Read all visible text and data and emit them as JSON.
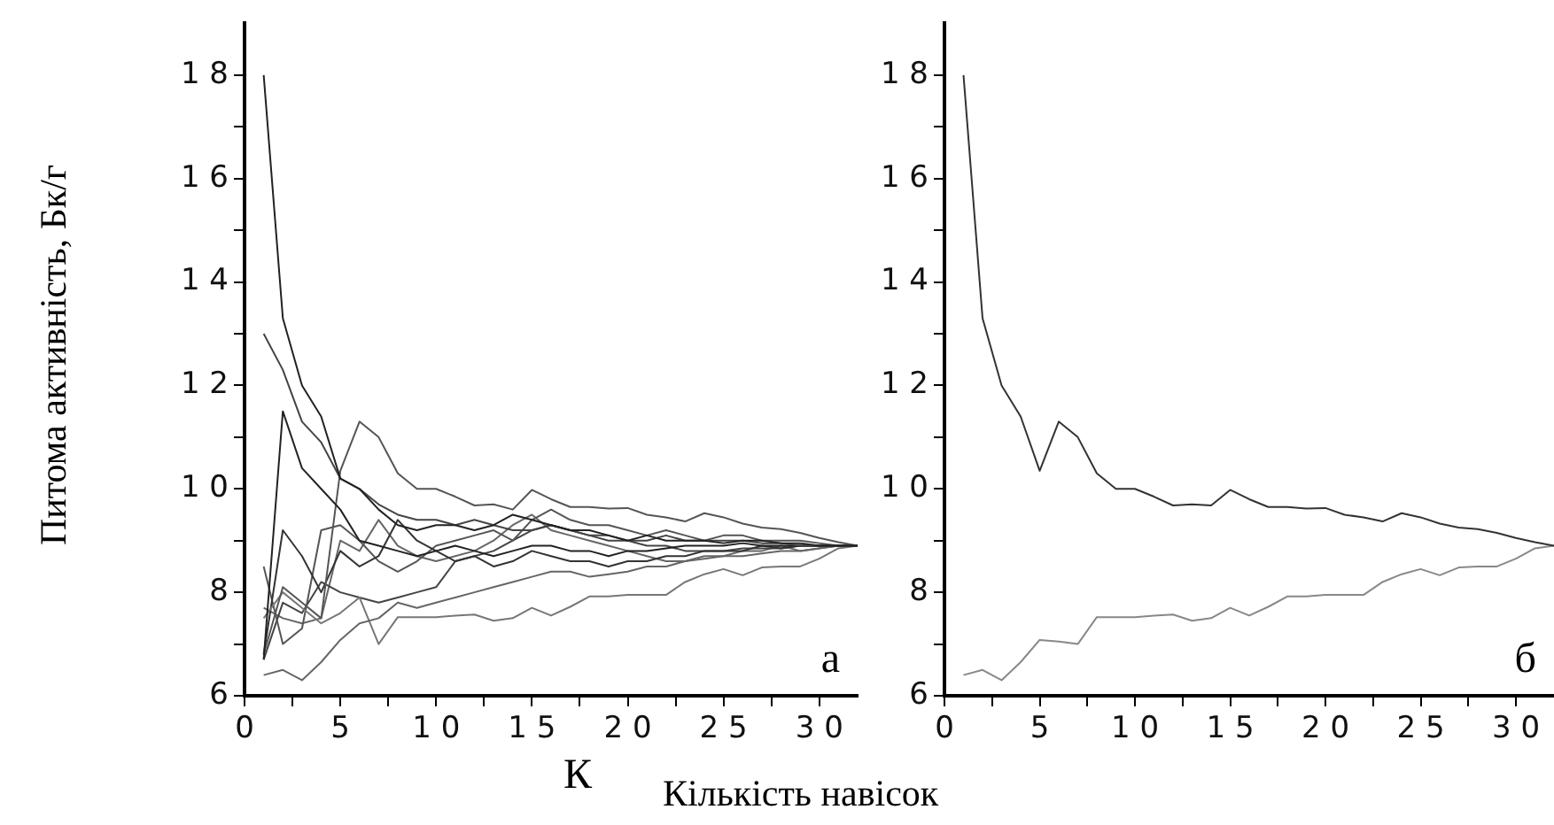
{
  "chart_data": [
    {
      "type": "line",
      "ylabel": "Питома активність, Бк/г",
      "xlabel": "К",
      "annotations": [
        "а"
      ],
      "grid": false,
      "legend": false,
      "marker": "none",
      "line_style": "solid",
      "x": [
        1,
        2,
        3,
        4,
        5,
        6,
        7,
        8,
        9,
        10,
        11,
        12,
        13,
        14,
        15,
        16,
        17,
        18,
        19,
        20,
        21,
        22,
        23,
        24,
        25,
        26,
        27,
        28,
        29,
        30,
        31,
        32
      ],
      "xlim": [
        0,
        32
      ],
      "ylim": [
        6,
        19
      ],
      "xticks": [
        0,
        {
          "value": 2.5,
          "label": null
        },
        5,
        {
          "value": 7.5,
          "label": null
        },
        10,
        {
          "value": 12.5,
          "label": null
        },
        15,
        {
          "value": 17.5,
          "label": null
        },
        20,
        {
          "value": 22.5,
          "label": null
        },
        25,
        {
          "value": 27.5,
          "label": null
        },
        30
      ],
      "yticks": [
        6,
        {
          "value": 7,
          "label": null
        },
        8,
        {
          "value": 9,
          "label": null
        },
        10,
        {
          "value": 11,
          "label": null
        },
        12,
        {
          "value": 13,
          "label": null
        },
        14,
        {
          "value": 15,
          "label": null
        },
        16,
        {
          "value": 17,
          "label": null
        },
        18
      ],
      "series": [
        {
          "color": "#222222",
          "values": [
            18,
            13.3,
            12,
            11.4,
            10.2,
            10.0,
            9.6,
            9.3,
            9.2,
            9.3,
            9.3,
            9.2,
            9.3,
            9.5,
            9.4,
            9.3,
            9.2,
            9.2,
            9.1,
            9.0,
            9.1,
            9.0,
            9.0,
            9.0,
            8.95,
            9.0,
            9.0,
            8.95,
            8.95,
            8.9,
            8.9,
            8.9
          ]
        },
        {
          "color": "#444444",
          "values": [
            13,
            12.3,
            11.3,
            10.9,
            10.2,
            10.0,
            9.7,
            9.5,
            9.4,
            9.4,
            9.3,
            9.4,
            9.3,
            9.2,
            9.2,
            9.3,
            9.2,
            9.1,
            9.1,
            9.0,
            9.0,
            9.1,
            9.0,
            9.0,
            9.0,
            9.0,
            8.95,
            8.95,
            8.9,
            8.9,
            8.9,
            8.9
          ]
        },
        {
          "color": "#222222",
          "values": [
            6.7,
            11.5,
            10.4,
            10.0,
            9.6,
            9.0,
            8.9,
            8.8,
            8.7,
            8.8,
            8.9,
            8.8,
            8.7,
            8.8,
            8.9,
            8.9,
            8.8,
            8.8,
            8.7,
            8.8,
            8.8,
            8.85,
            8.9,
            8.9,
            8.9,
            8.95,
            8.9,
            8.9,
            8.9,
            8.9,
            8.9,
            8.9
          ]
        },
        {
          "color": "#555555",
          "values": [
            6.8,
            8.1,
            7.8,
            7.5,
            10.35,
            11.3,
            11.0,
            10.3,
            10.0,
            10.0,
            9.85,
            9.68,
            9.7,
            9.6,
            9.98,
            9.8,
            9.65,
            9.65,
            9.62,
            9.63,
            9.5,
            9.45,
            9.37,
            9.53,
            9.45,
            9.33,
            9.25,
            9.22,
            9.15,
            9.05,
            8.97,
            8.9
          ]
        },
        {
          "color": "#666666",
          "values": [
            6.4,
            6.5,
            6.3,
            6.65,
            7.08,
            7.4,
            7.5,
            7.8,
            7.7,
            7.8,
            7.9,
            8.0,
            8.1,
            8.2,
            8.3,
            8.4,
            8.4,
            8.3,
            8.35,
            8.4,
            8.5,
            8.5,
            8.6,
            8.65,
            8.7,
            8.7,
            8.75,
            8.8,
            8.8,
            8.85,
            8.9,
            8.9
          ]
        },
        {
          "color": "#777777",
          "values": [
            7.5,
            8.0,
            7.7,
            7.4,
            7.6,
            7.9,
            7.0,
            7.52,
            7.52,
            7.52,
            7.55,
            7.57,
            7.45,
            7.5,
            7.7,
            7.55,
            7.72,
            7.92,
            7.92,
            7.95,
            7.95,
            7.95,
            8.2,
            8.35,
            8.45,
            8.33,
            8.48,
            8.5,
            8.5,
            8.65,
            8.85,
            8.9
          ]
        },
        {
          "color": "#333333",
          "values": [
            6.8,
            9.2,
            8.7,
            8.0,
            8.8,
            8.5,
            8.7,
            9.4,
            9.0,
            8.8,
            8.6,
            8.7,
            8.5,
            8.6,
            8.8,
            8.7,
            8.6,
            8.6,
            8.5,
            8.6,
            8.6,
            8.7,
            8.7,
            8.8,
            8.8,
            8.8,
            8.9,
            8.85,
            8.9,
            8.9,
            8.9,
            8.9
          ]
        },
        {
          "color": "#555555",
          "values": [
            8.5,
            7.0,
            7.3,
            9.2,
            9.3,
            9.0,
            8.6,
            8.4,
            8.6,
            8.9,
            9.0,
            9.1,
            9.2,
            9.0,
            9.4,
            9.6,
            9.4,
            9.3,
            9.3,
            9.2,
            9.1,
            9.2,
            9.1,
            9.0,
            9.1,
            9.1,
            9.0,
            9.0,
            9.0,
            8.95,
            8.9,
            8.9
          ]
        },
        {
          "color": "#444444",
          "values": [
            6.7,
            7.8,
            7.6,
            8.2,
            8.0,
            7.9,
            7.8,
            7.9,
            8.0,
            8.1,
            8.6,
            8.7,
            8.8,
            9.0,
            9.2,
            9.3,
            9.2,
            9.1,
            9.0,
            9.0,
            8.9,
            8.9,
            8.8,
            8.8,
            8.8,
            8.85,
            8.85,
            8.85,
            8.9,
            8.9,
            8.9,
            8.9
          ]
        },
        {
          "color": "#666666",
          "values": [
            7.7,
            7.5,
            7.4,
            7.5,
            9.0,
            8.8,
            9.4,
            8.9,
            8.7,
            8.6,
            8.7,
            8.8,
            9.0,
            9.3,
            9.5,
            9.2,
            9.1,
            9.0,
            8.9,
            8.8,
            8.7,
            8.6,
            8.6,
            8.7,
            8.7,
            8.8,
            8.8,
            8.9,
            8.8,
            8.85,
            8.9,
            8.9
          ]
        }
      ]
    },
    {
      "type": "line",
      "xlabel": "Кількість навісок",
      "annotations": [
        "б"
      ],
      "grid": false,
      "legend": false,
      "marker": "none",
      "line_style": "solid",
      "x": [
        1,
        2,
        3,
        4,
        5,
        6,
        7,
        8,
        9,
        10,
        11,
        12,
        13,
        14,
        15,
        16,
        17,
        18,
        19,
        20,
        21,
        22,
        23,
        24,
        25,
        26,
        27,
        28,
        29,
        30,
        31,
        32
      ],
      "xlim": [
        0,
        32
      ],
      "ylim": [
        6,
        19
      ],
      "xticks": [
        0,
        {
          "value": 2.5,
          "label": null
        },
        5,
        {
          "value": 7.5,
          "label": null
        },
        10,
        {
          "value": 12.5,
          "label": null
        },
        15,
        {
          "value": 17.5,
          "label": null
        },
        20,
        {
          "value": 22.5,
          "label": null
        },
        25,
        {
          "value": 27.5,
          "label": null
        },
        30
      ],
      "yticks": [
        6,
        {
          "value": 7,
          "label": null
        },
        8,
        {
          "value": 9,
          "label": null
        },
        10,
        {
          "value": 11,
          "label": null
        },
        12,
        {
          "value": 13,
          "label": null
        },
        14,
        {
          "value": 15,
          "label": null
        },
        16,
        {
          "value": 17,
          "label": null
        },
        18
      ],
      "series": [
        {
          "color": "#333333",
          "values": [
            18.0,
            13.3,
            12.0,
            11.4,
            10.35,
            11.3,
            11.0,
            10.3,
            10.0,
            10.0,
            9.85,
            9.68,
            9.7,
            9.68,
            9.98,
            9.8,
            9.65,
            9.65,
            9.62,
            9.63,
            9.5,
            9.45,
            9.37,
            9.53,
            9.45,
            9.33,
            9.25,
            9.22,
            9.15,
            9.05,
            8.97,
            8.9
          ]
        },
        {
          "color": "#888888",
          "values": [
            6.4,
            6.5,
            6.3,
            6.65,
            7.08,
            7.05,
            7.0,
            7.52,
            7.52,
            7.52,
            7.55,
            7.57,
            7.45,
            7.5,
            7.7,
            7.55,
            7.72,
            7.92,
            7.92,
            7.95,
            7.95,
            7.95,
            8.2,
            8.35,
            8.45,
            8.33,
            8.48,
            8.5,
            8.5,
            8.65,
            8.85,
            8.9
          ]
        }
      ]
    }
  ]
}
